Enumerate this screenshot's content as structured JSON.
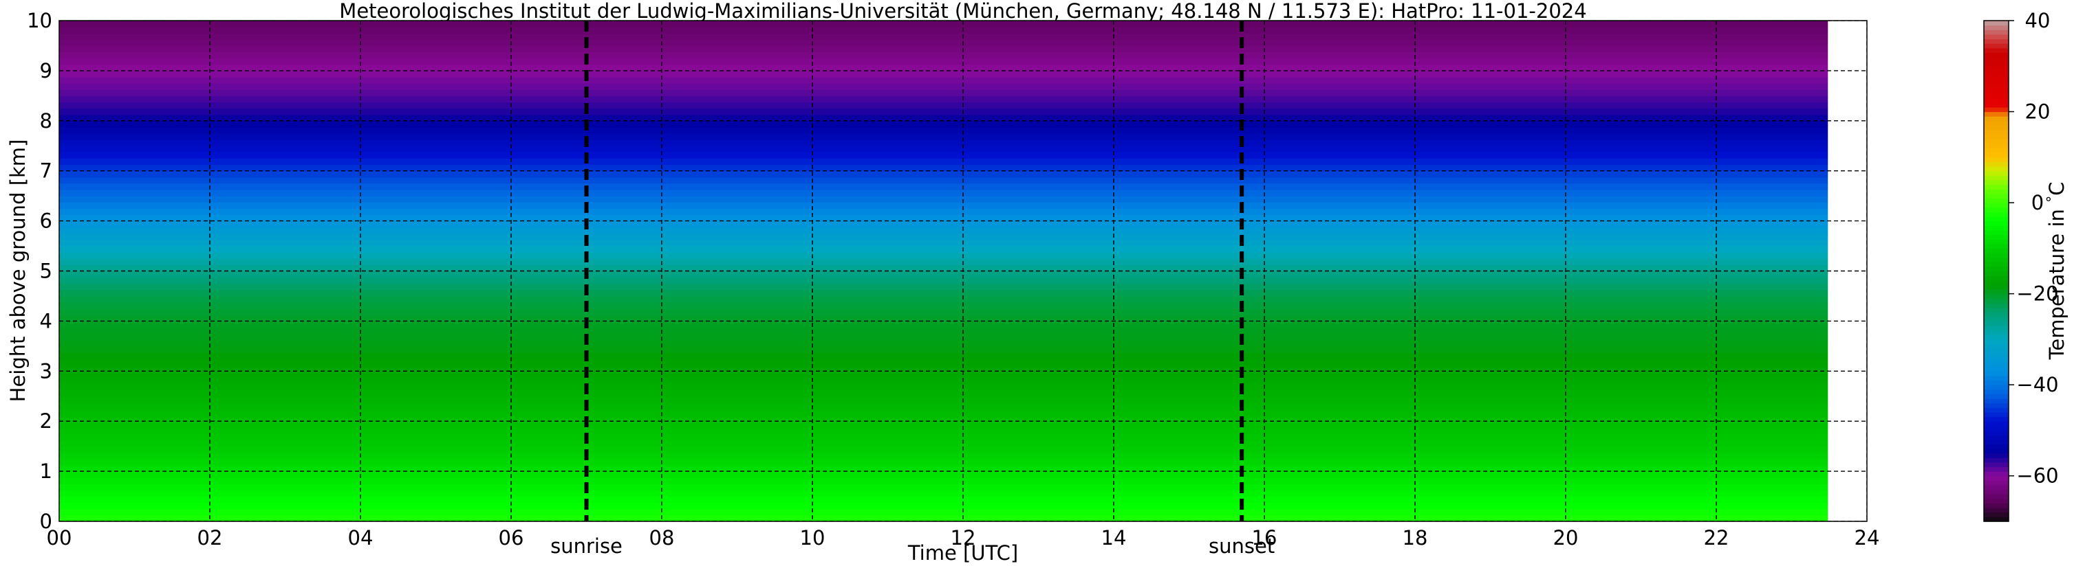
{
  "chart_data": {
    "type": "heatmap",
    "title": "Meteorologisches Institut der Ludwig-Maximilians-Universität (München, Germany; 48.148 N / 11.573 E):    HatPro: 11-01-2024",
    "xlabel": "Time [UTC]",
    "ylabel": "Height above ground [km]",
    "xlim": [
      0,
      24
    ],
    "ylim": [
      0,
      10
    ],
    "x_ticks": [
      "00",
      "02",
      "04",
      "06",
      "08",
      "10",
      "12",
      "14",
      "16",
      "18",
      "20",
      "22",
      "24"
    ],
    "y_ticks": [
      "0",
      "1",
      "2",
      "3",
      "4",
      "5",
      "6",
      "7",
      "8",
      "9",
      "10"
    ],
    "grid": true,
    "data_end_time": 23.5,
    "markers": [
      {
        "label": "sunrise",
        "time": 7.0
      },
      {
        "label": "sunset",
        "time": 15.7
      }
    ],
    "temperature_profile": {
      "height_km": [
        0,
        0.5,
        1,
        1.5,
        2,
        2.5,
        3,
        3.5,
        4,
        4.5,
        5,
        5.5,
        6,
        6.5,
        7,
        7.5,
        8,
        8.5,
        9,
        9.5,
        10
      ],
      "temperature_c": [
        -2,
        -5,
        -8,
        -11,
        -13,
        -15,
        -17,
        -19,
        -20,
        -22,
        -26,
        -31,
        -36,
        -41,
        -45,
        -50,
        -55,
        -58,
        -60,
        -63,
        -65
      ]
    },
    "colorbar": {
      "label": "Temperature in $^\\circ$C",
      "vmin": -70,
      "vmax": 40,
      "ticks": [
        "40",
        "20",
        "0",
        "−20",
        "−40",
        "−60"
      ],
      "tick_values": [
        40,
        20,
        0,
        -20,
        -40,
        -60
      ]
    }
  },
  "colors": {
    "colormap": [
      {
        "t": -70,
        "c": "#0a0a0a"
      },
      {
        "t": -66,
        "c": "#5a005a"
      },
      {
        "t": -60,
        "c": "#8a0a9a"
      },
      {
        "t": -55,
        "c": "#0000a0"
      },
      {
        "t": -48,
        "c": "#0010d0"
      },
      {
        "t": -42,
        "c": "#0064e0"
      },
      {
        "t": -37,
        "c": "#0090e0"
      },
      {
        "t": -30,
        "c": "#00a8c0"
      },
      {
        "t": -24,
        "c": "#00a070"
      },
      {
        "t": -18,
        "c": "#00a000"
      },
      {
        "t": -10,
        "c": "#00d000"
      },
      {
        "t": -4,
        "c": "#00ff00"
      },
      {
        "t": 3,
        "c": "#66ff00"
      },
      {
        "t": 7,
        "c": "#ccee00"
      },
      {
        "t": 10,
        "c": "#ffc000"
      },
      {
        "t": 19,
        "c": "#f0a000"
      },
      {
        "t": 21,
        "c": "#e60000"
      },
      {
        "t": 33,
        "c": "#cc0000"
      },
      {
        "t": 36,
        "c": "#d04040"
      },
      {
        "t": 40,
        "c": "#c0a0a0"
      }
    ]
  }
}
